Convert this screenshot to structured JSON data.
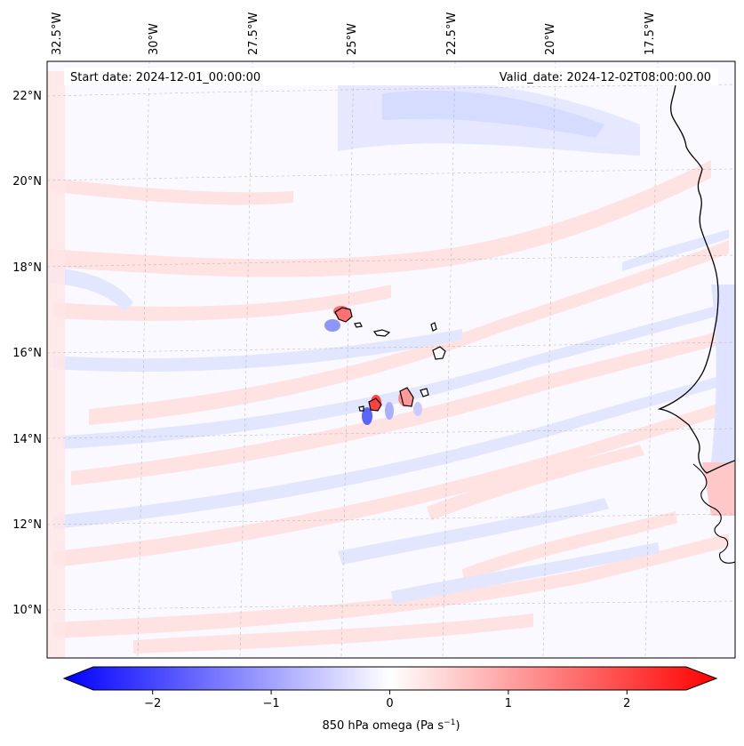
{
  "map": {
    "start_date": "Start date: 2024-12-01_00:00:00",
    "valid_date": "Valid_date: 2024-12-02T08:00:00.00",
    "lon_labels": [
      "32.5°W",
      "30°W",
      "27.5°W",
      "25°W",
      "22.5°W",
      "20°W",
      "17.5°W"
    ],
    "lat_labels": [
      "22°N",
      "20°N",
      "18°N",
      "16°N",
      "14°N",
      "12°N",
      "10°N"
    ],
    "field": "850 hPa omega",
    "features": [
      "cape-verde-islands",
      "west-africa-coastline"
    ]
  },
  "colorbar": {
    "label_main": "850 hPa omega (Pa s",
    "label_sup": "−1",
    "label_end": ")",
    "ticks": [
      {
        "value": -2,
        "label": "−2"
      },
      {
        "value": -1,
        "label": "−1"
      },
      {
        "value": 0,
        "label": "0"
      },
      {
        "value": 1,
        "label": "1"
      },
      {
        "value": 2,
        "label": "2"
      }
    ],
    "range": [
      -2.5,
      2.5
    ],
    "colormap": "bwr",
    "colors": {
      "min": "#0000ff",
      "mid": "#ffffff",
      "max": "#ff0000"
    }
  }
}
